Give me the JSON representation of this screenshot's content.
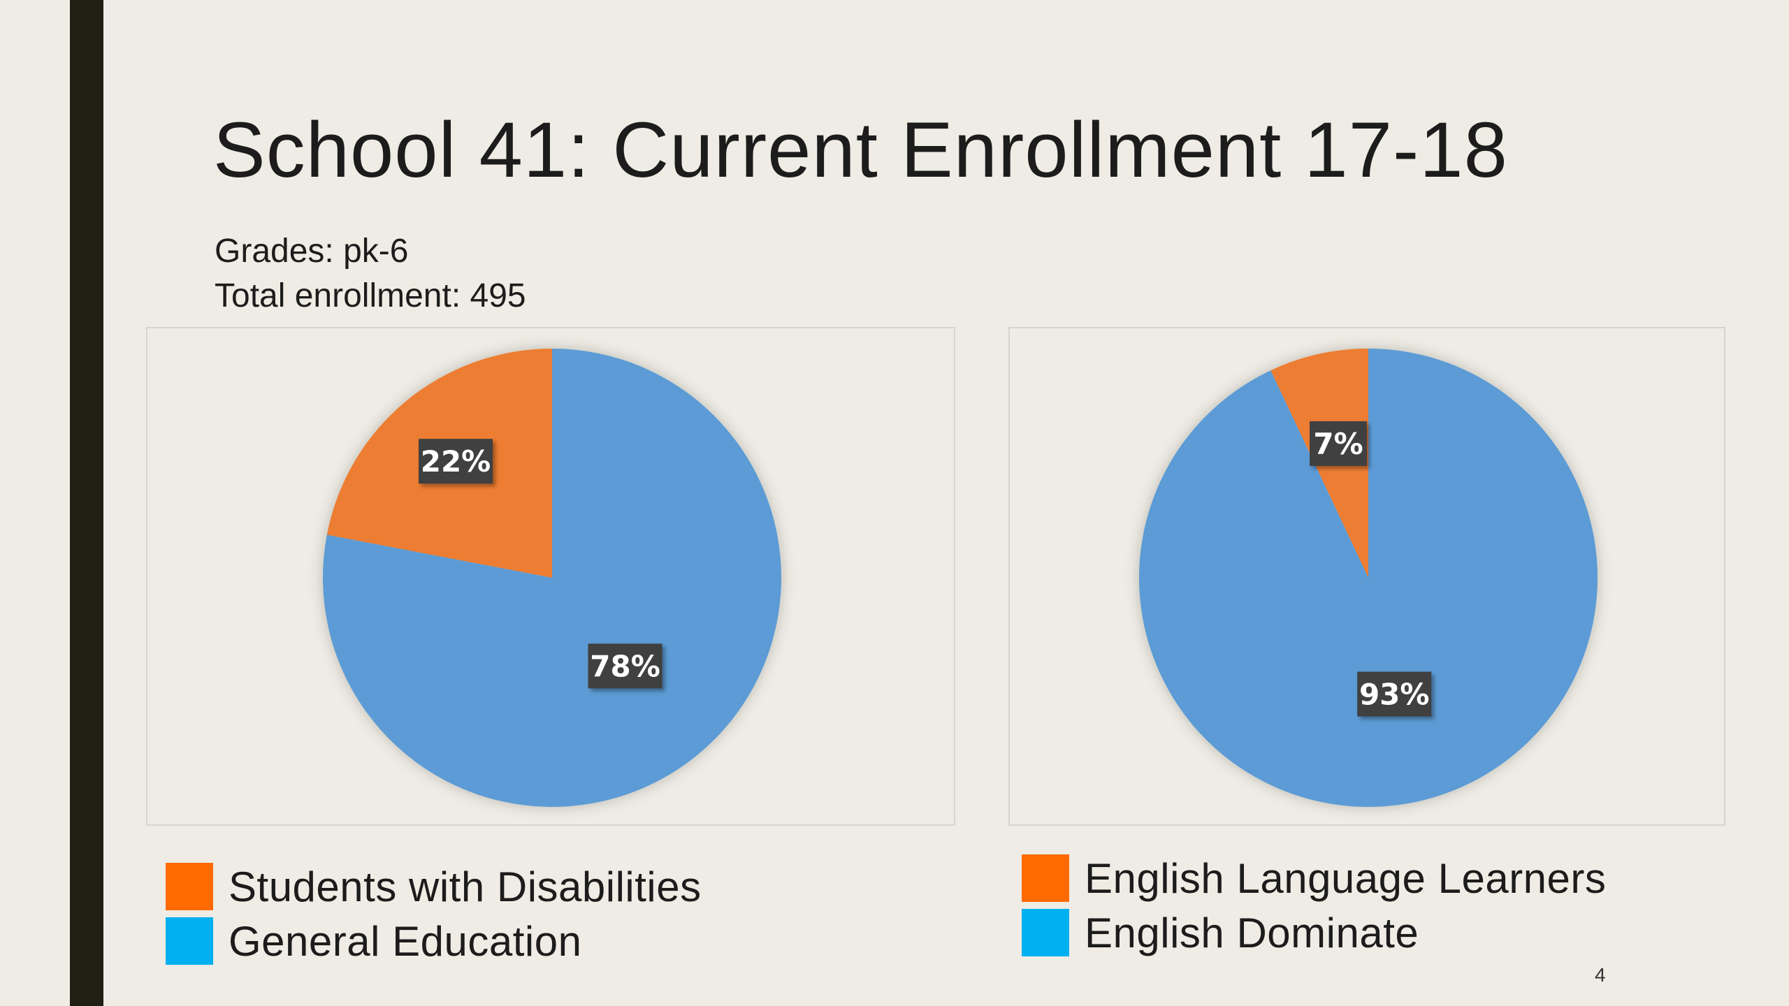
{
  "slide": {
    "title": "School 41: Current Enrollment 17-18",
    "grades": "Grades: pk-6",
    "total_enrollment": "Total enrollment: 495",
    "page_number": "4"
  },
  "chart_data": [
    {
      "type": "pie",
      "categories": [
        "Students with Disabilities",
        "General Education"
      ],
      "values": [
        22,
        78
      ],
      "labels": [
        "22%",
        "78%"
      ],
      "colors": [
        "#ed7d31",
        "#5b9bd5"
      ],
      "legend_colors": [
        "#ff6a00",
        "#00b0f0"
      ],
      "legend": [
        "Students with Disabilities",
        "General Education"
      ],
      "legend_position": "bottom"
    },
    {
      "type": "pie",
      "categories": [
        "English Language Learners",
        "English Dominate"
      ],
      "values": [
        7,
        93
      ],
      "labels": [
        "7%",
        "93%"
      ],
      "colors": [
        "#ed7d31",
        "#5b9bd5"
      ],
      "legend_colors": [
        "#ff6a00",
        "#00b0f0"
      ],
      "legend": [
        "English Language Learners",
        "English Dominate"
      ],
      "legend_position": "bottom"
    }
  ]
}
